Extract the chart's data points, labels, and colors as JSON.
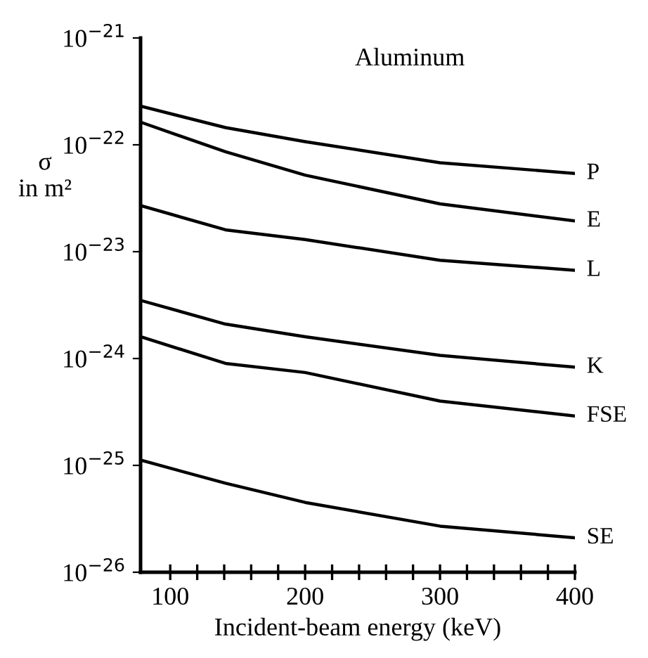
{
  "chart_data": {
    "type": "line",
    "title": "Aluminum",
    "xlabel": "Incident-beam energy (keV)",
    "ylabel": "σ\nin m²",
    "log": "y",
    "xlim": [
      78,
      400
    ],
    "ylim": [
      1e-26,
      1e-21
    ],
    "xticks": [
      100,
      {
        "value": 120,
        "label": null
      },
      {
        "value": 140,
        "label": null
      },
      {
        "value": 160,
        "label": null
      },
      {
        "value": 180,
        "label": null
      },
      200,
      {
        "value": 220,
        "label": null
      },
      {
        "value": 240,
        "label": null
      },
      {
        "value": 260,
        "label": null
      },
      {
        "value": 280,
        "label": null
      },
      300,
      {
        "value": 320,
        "label": null
      },
      {
        "value": 340,
        "label": null
      },
      {
        "value": 360,
        "label": null
      },
      {
        "value": 380,
        "label": null
      },
      400
    ],
    "yticks": [
      {
        "value": 1e-26,
        "label": "10$^{−26}$"
      },
      {
        "value": 1e-25,
        "label": "10$^{−25}$"
      },
      {
        "value": 1e-24,
        "label": "10$^{−24}$"
      },
      {
        "value": 1e-23,
        "label": "10$^{−23}$"
      },
      {
        "value": 1e-22,
        "label": "10$^{−22}$"
      },
      {
        "value": 1e-21,
        "label": "10$^{−21}$"
      }
    ],
    "x": [
      78,
      141,
      200,
      300,
      400
    ],
    "grid": false,
    "legend": false,
    "marker": "none",
    "line_style": "solid",
    "series": [
      {
        "name": "P",
        "color": "#000000",
        "values": [
          2.3e-22,
          1.45e-22,
          1.07e-22,
          6.8e-23,
          5.4e-23
        ]
      },
      {
        "name": "E",
        "color": "#000000",
        "values": [
          1.63e-22,
          8.6e-23,
          5.2e-23,
          2.8e-23,
          1.94e-23
        ]
      },
      {
        "name": "L",
        "color": "#000000",
        "values": [
          2.7e-23,
          1.6e-23,
          1.3e-23,
          8.3e-24,
          6.7e-24
        ]
      },
      {
        "name": "K",
        "color": "#000000",
        "values": [
          3.5e-24,
          2.1e-24,
          1.6e-24,
          1.07e-24,
          8.3e-25
        ]
      },
      {
        "name": "FSE",
        "color": "#000000",
        "values": [
          1.6e-24,
          9e-25,
          7.4e-25,
          4e-25,
          2.9e-25
        ]
      },
      {
        "name": "SE",
        "color": "#000000",
        "values": [
          1.12e-25,
          6.8e-26,
          4.5e-26,
          2.7e-26,
          2.1e-26
        ]
      }
    ]
  }
}
